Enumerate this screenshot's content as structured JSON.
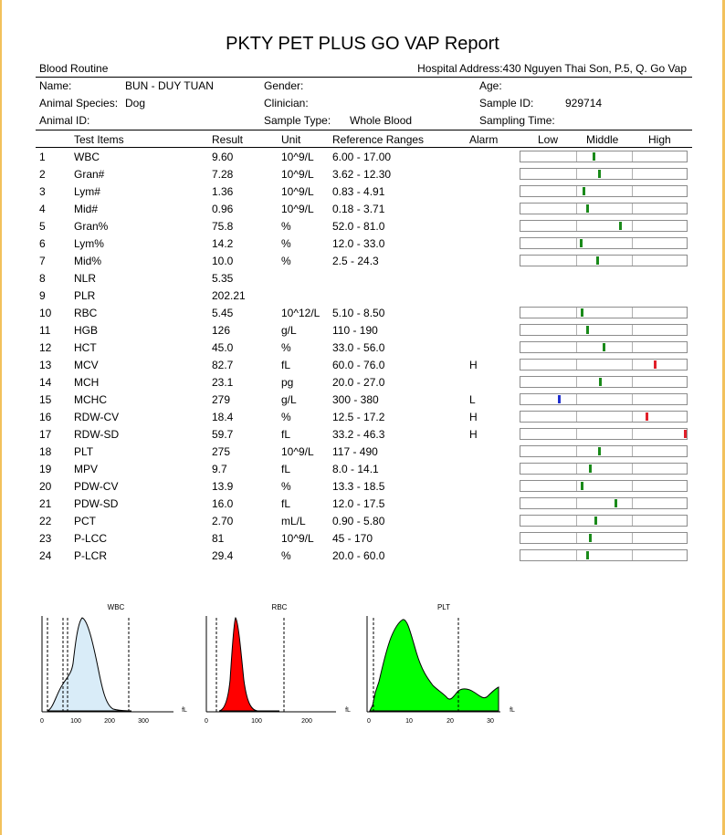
{
  "report": {
    "title": "PKTY PET PLUS GO VAP Report",
    "section": "Blood Routine",
    "hospital_address": "Hospital Address:430 Nguyen Thai Son, P.5, Q. Go Vap"
  },
  "patient": {
    "name_label": "Name:",
    "name": "BUN - DUY TUAN",
    "gender_label": "Gender:",
    "gender": "",
    "age_label": "Age:",
    "age": "",
    "species_label": "Animal Species:",
    "species": "Dog",
    "clinician_label": "Clinician:",
    "clinician": "",
    "sample_id_label": "Sample ID:",
    "sample_id": "929714",
    "animal_id_label": "Animal ID:",
    "animal_id": "",
    "sample_type_label": "Sample Type:",
    "sample_type": "Whole Blood",
    "sampling_time_label": "Sampling Time:",
    "sampling_time": ""
  },
  "columns": {
    "test_items": "Test Items",
    "result": "Result",
    "unit": "Unit",
    "reference": "Reference Ranges",
    "alarm": "Alarm",
    "low": "Low",
    "middle": "Middle",
    "high": "High"
  },
  "colors": {
    "normal": "#1a8a1a",
    "high": "#e0202a",
    "low": "#1f2fd0",
    "wbc_fill": "#d9ecf8",
    "rbc_fill": "#ff0000",
    "plt_fill": "#00ff00"
  },
  "rows": [
    {
      "no": "1",
      "item": "WBC",
      "result": "9.60",
      "unit": "10^9/L",
      "ref": "6.00 - 17.00",
      "alarm": "",
      "level": 0.44,
      "status": "normal"
    },
    {
      "no": "2",
      "item": "Gran#",
      "result": "7.28",
      "unit": "10^9/L",
      "ref": "3.62 - 12.30",
      "alarm": "",
      "level": 0.47,
      "status": "normal"
    },
    {
      "no": "3",
      "item": "Lym#",
      "result": "1.36",
      "unit": "10^9/L",
      "ref": "0.83 - 4.91",
      "alarm": "",
      "level": 0.38,
      "status": "normal"
    },
    {
      "no": "4",
      "item": "Mid#",
      "result": "0.96",
      "unit": "10^9/L",
      "ref": "0.18 - 3.71",
      "alarm": "",
      "level": 0.4,
      "status": "normal"
    },
    {
      "no": "5",
      "item": "Gran%",
      "result": "75.8",
      "unit": "%",
      "ref": "52.0 - 81.0",
      "alarm": "",
      "level": 0.6,
      "status": "normal"
    },
    {
      "no": "6",
      "item": "Lym%",
      "result": "14.2",
      "unit": "%",
      "ref": "12.0 - 33.0",
      "alarm": "",
      "level": 0.36,
      "status": "normal"
    },
    {
      "no": "7",
      "item": "Mid%",
      "result": "10.0",
      "unit": "%",
      "ref": "2.5 - 24.3",
      "alarm": "",
      "level": 0.46,
      "status": "normal"
    },
    {
      "no": "8",
      "item": "NLR",
      "result": "5.35",
      "unit": "",
      "ref": "",
      "alarm": "",
      "level": null,
      "status": ""
    },
    {
      "no": "9",
      "item": "PLR",
      "result": "202.21",
      "unit": "",
      "ref": "",
      "alarm": "",
      "level": null,
      "status": ""
    },
    {
      "no": "10",
      "item": "RBC",
      "result": "5.45",
      "unit": "10^12/L",
      "ref": "5.10 - 8.50",
      "alarm": "",
      "level": 0.37,
      "status": "normal"
    },
    {
      "no": "11",
      "item": "HGB",
      "result": "126",
      "unit": "g/L",
      "ref": "110 - 190",
      "alarm": "",
      "level": 0.4,
      "status": "normal"
    },
    {
      "no": "12",
      "item": "HCT",
      "result": "45.0",
      "unit": "%",
      "ref": "33.0 - 56.0",
      "alarm": "",
      "level": 0.5,
      "status": "normal"
    },
    {
      "no": "13",
      "item": "MCV",
      "result": "82.7",
      "unit": "fL",
      "ref": "60.0 - 76.0",
      "alarm": "H",
      "level": 0.81,
      "status": "high"
    },
    {
      "no": "14",
      "item": "MCH",
      "result": "23.1",
      "unit": "pg",
      "ref": "20.0 - 27.0",
      "alarm": "",
      "level": 0.48,
      "status": "normal"
    },
    {
      "no": "15",
      "item": "MCHC",
      "result": "279",
      "unit": "g/L",
      "ref": "300 - 380",
      "alarm": "L",
      "level": 0.23,
      "status": "low"
    },
    {
      "no": "16",
      "item": "RDW-CV",
      "result": "18.4",
      "unit": "%",
      "ref": "12.5 - 17.2",
      "alarm": "H",
      "level": 0.76,
      "status": "high"
    },
    {
      "no": "17",
      "item": "RDW-SD",
      "result": "59.7",
      "unit": "fL",
      "ref": "33.2 - 46.3",
      "alarm": "H",
      "level": 1.0,
      "status": "high"
    },
    {
      "no": "18",
      "item": "PLT",
      "result": "275",
      "unit": "10^9/L",
      "ref": "117 - 490",
      "alarm": "",
      "level": 0.47,
      "status": "normal"
    },
    {
      "no": "19",
      "item": "MPV",
      "result": "9.7",
      "unit": "fL",
      "ref": "8.0 - 14.1",
      "alarm": "",
      "level": 0.42,
      "status": "normal"
    },
    {
      "no": "20",
      "item": "PDW-CV",
      "result": "13.9",
      "unit": "%",
      "ref": "13.3 - 18.5",
      "alarm": "",
      "level": 0.37,
      "status": "normal"
    },
    {
      "no": "21",
      "item": "PDW-SD",
      "result": "16.0",
      "unit": "fL",
      "ref": "12.0 - 17.5",
      "alarm": "",
      "level": 0.57,
      "status": "normal"
    },
    {
      "no": "22",
      "item": "PCT",
      "result": "2.70",
      "unit": "mL/L",
      "ref": "0.90 - 5.80",
      "alarm": "",
      "level": 0.45,
      "status": "normal"
    },
    {
      "no": "23",
      "item": "P-LCC",
      "result": "81",
      "unit": "10^9/L",
      "ref": "45 - 170",
      "alarm": "",
      "level": 0.42,
      "status": "normal"
    },
    {
      "no": "24",
      "item": "P-LCR",
      "result": "29.4",
      "unit": "%",
      "ref": "20.0 - 60.0",
      "alarm": "",
      "level": 0.4,
      "status": "normal"
    }
  ],
  "histograms": {
    "wbc": {
      "title": "WBC",
      "ticks": [
        "0",
        "100",
        "200",
        "300"
      ],
      "unit": "fL"
    },
    "rbc": {
      "title": "RBC",
      "ticks": [
        "0",
        "100",
        "200"
      ],
      "unit": "fL"
    },
    "plt": {
      "title": "PLT",
      "ticks": [
        "0",
        "10",
        "20",
        "30"
      ],
      "unit": "fL"
    }
  }
}
